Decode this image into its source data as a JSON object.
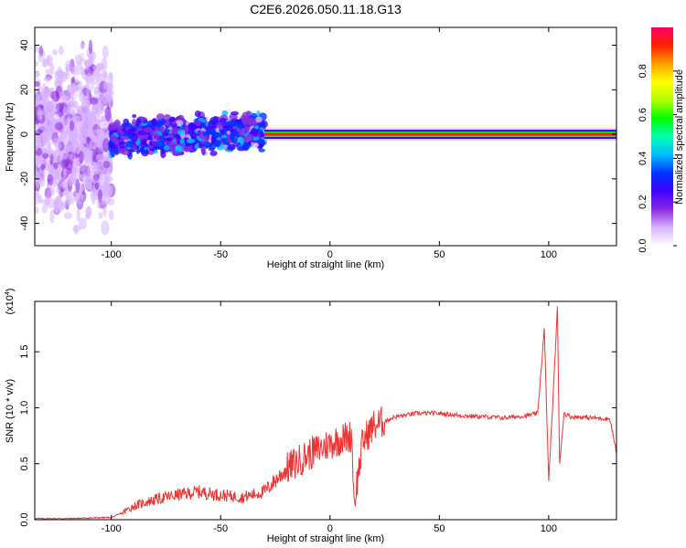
{
  "title": "C2E6.2026.050.11.18.G13",
  "chart_data": [
    {
      "type": "heatmap",
      "xlabel": "Height of straight line (km)",
      "ylabel": "Frequency (Hz)",
      "xlim": [
        -135,
        131
      ],
      "ylim": [
        -50,
        48
      ],
      "xticks": [
        -100,
        -50,
        0,
        50,
        100
      ],
      "yticks": [
        -40,
        -20,
        0,
        20,
        40
      ],
      "colorbar": {
        "label": "Normalized spectral amplitude",
        "range": [
          0,
          1
        ],
        "ticks": [
          "0.0",
          "0.2",
          "0.4",
          "0.6",
          "0.8"
        ],
        "colors": [
          "#ffffff",
          "#d9b3ff",
          "#8a2be2",
          "#3f00ff",
          "#0033ff",
          "#00c0ff",
          "#00ffb0",
          "#00ff00",
          "#b0ff00",
          "#ffff00",
          "#ffa000",
          "#ff2000",
          "#ff0066"
        ]
      },
      "regions": [
        {
          "x": [
            -135,
            -100
          ],
          "spread_hz": 50,
          "level": 0.12
        },
        {
          "x": [
            -100,
            -30
          ],
          "spread_hz": 10,
          "level": 0.35
        },
        {
          "x": [
            -30,
            131
          ],
          "spread_hz": 1.5,
          "level": 0.95
        }
      ]
    },
    {
      "type": "line",
      "xlabel": "Height of straight line (km)",
      "ylabel": "SNR (10 * v/v)",
      "yscale_label": "(x10",
      "yscale_exp": "4",
      "xlim": [
        -135,
        131
      ],
      "ylim": [
        0,
        1.95
      ],
      "xticks": [
        -100,
        -50,
        0,
        50,
        100
      ],
      "yticks": [
        "0.0",
        "0.5",
        "1.0",
        "1.5"
      ],
      "line_color": "#ee3333",
      "series": [
        {
          "x": [
            -135,
            -120,
            -100,
            -95,
            -90,
            -80,
            -70,
            -60,
            -50,
            -40,
            -30,
            -25,
            -20,
            -10,
            0,
            5,
            10,
            11,
            15,
            20,
            25,
            30,
            40,
            50,
            60,
            70,
            80,
            90,
            95,
            98,
            100,
            102,
            104,
            105,
            107,
            110,
            120,
            128,
            131
          ],
          "values": [
            0.01,
            0.01,
            0.02,
            0.06,
            0.12,
            0.18,
            0.22,
            0.25,
            0.22,
            0.2,
            0.25,
            0.35,
            0.45,
            0.58,
            0.68,
            0.72,
            0.75,
            0.15,
            0.7,
            0.84,
            0.88,
            0.92,
            0.95,
            0.95,
            0.93,
            0.92,
            0.91,
            0.93,
            0.95,
            1.7,
            0.35,
            1.1,
            1.9,
            0.5,
            0.95,
            0.92,
            0.91,
            0.9,
            0.6
          ]
        }
      ]
    }
  ]
}
